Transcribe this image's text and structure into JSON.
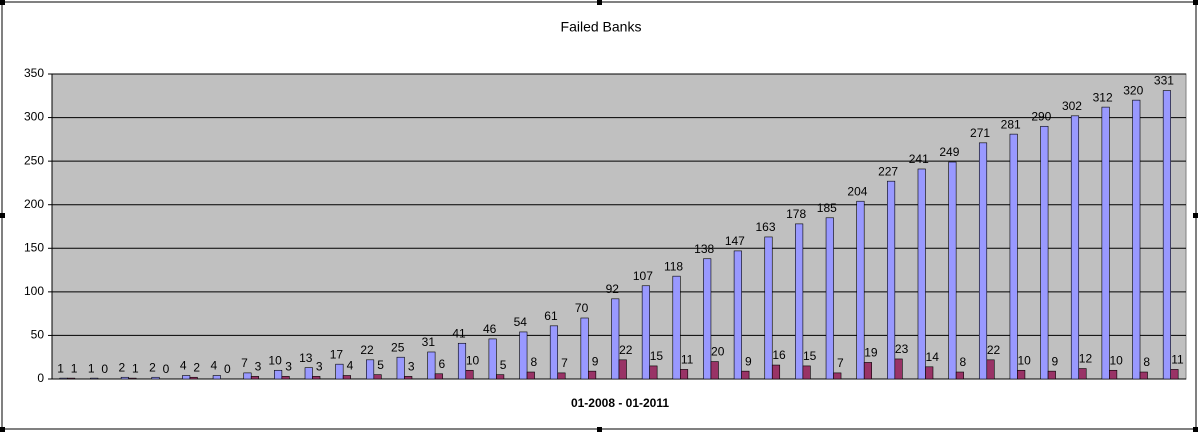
{
  "chart_data": {
    "type": "bar",
    "title": "Failed Banks",
    "x_label": "01-2008 - 01-2011",
    "categories": [
      null,
      null,
      null,
      null,
      null,
      null,
      null,
      null,
      null,
      null,
      null,
      null,
      null,
      null,
      null,
      null,
      null,
      null,
      null,
      null,
      null,
      null,
      null,
      null,
      null,
      null,
      null,
      null,
      null,
      null,
      null,
      null,
      null,
      null,
      null,
      null,
      null
    ],
    "series": [
      {
        "color": "#9999ff",
        "values": [
          1,
          1,
          2,
          2,
          4,
          4,
          7,
          10,
          13,
          17,
          22,
          25,
          31,
          41,
          46,
          54,
          61,
          70,
          92,
          107,
          118,
          138,
          147,
          163,
          178,
          185,
          204,
          227,
          241,
          249,
          271,
          281,
          290,
          302,
          312,
          320,
          331
        ]
      },
      {
        "color": "#993366",
        "values": [
          1,
          0,
          1,
          0,
          2,
          0,
          3,
          3,
          3,
          4,
          5,
          3,
          6,
          10,
          5,
          8,
          7,
          9,
          22,
          15,
          11,
          20,
          9,
          16,
          15,
          7,
          19,
          23,
          14,
          8,
          22,
          10,
          9,
          12,
          10,
          8,
          11
        ]
      }
    ],
    "ylim": [
      0,
      350
    ],
    "yticks": [
      0,
      50,
      100,
      150,
      200,
      250,
      300,
      350
    ],
    "grid": true,
    "plot_background": "#c0c0c0"
  }
}
